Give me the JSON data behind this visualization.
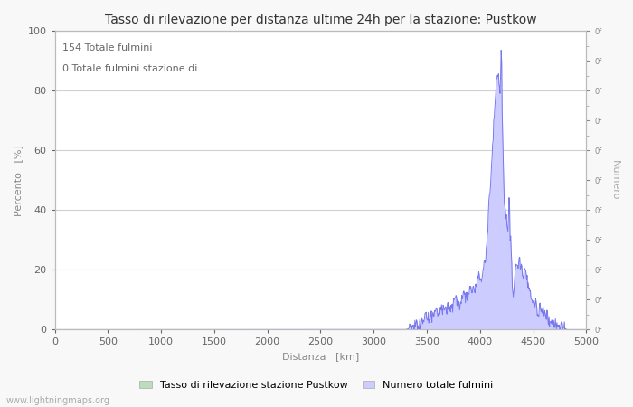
{
  "title": "Tasso di rilevazione per distanza ultime 24h per la stazione: Pustkow",
  "xlabel": "Distanza   [km]",
  "ylabel_left": "Percento   [%]",
  "ylabel_right": "Numero",
  "annotation_line1": "154 Totale fulmini",
  "annotation_line2": "0 Totale fulmini stazione di",
  "xlim": [
    0,
    5000
  ],
  "ylim": [
    0,
    100
  ],
  "xticks": [
    0,
    500,
    1000,
    1500,
    2000,
    2500,
    3000,
    3500,
    4000,
    4500,
    5000
  ],
  "yticks_left": [
    0,
    20,
    40,
    60,
    80,
    100
  ],
  "bg_color": "#f8f8f8",
  "plot_bg_color": "#ffffff",
  "grid_color": "#d0d0d0",
  "line_color": "#7777ee",
  "fill_color": "#ccccff",
  "legend_label_left": "Tasso di rilevazione stazione Pustkow",
  "legend_label_right": "Numero totale fulmini",
  "legend_color_left": "#bbddbb",
  "legend_color_right": "#ccccff",
  "watermark": "www.lightningmaps.org",
  "title_fontsize": 10,
  "axis_label_fontsize": 8,
  "tick_fontsize": 8,
  "annotation_fontsize": 8
}
